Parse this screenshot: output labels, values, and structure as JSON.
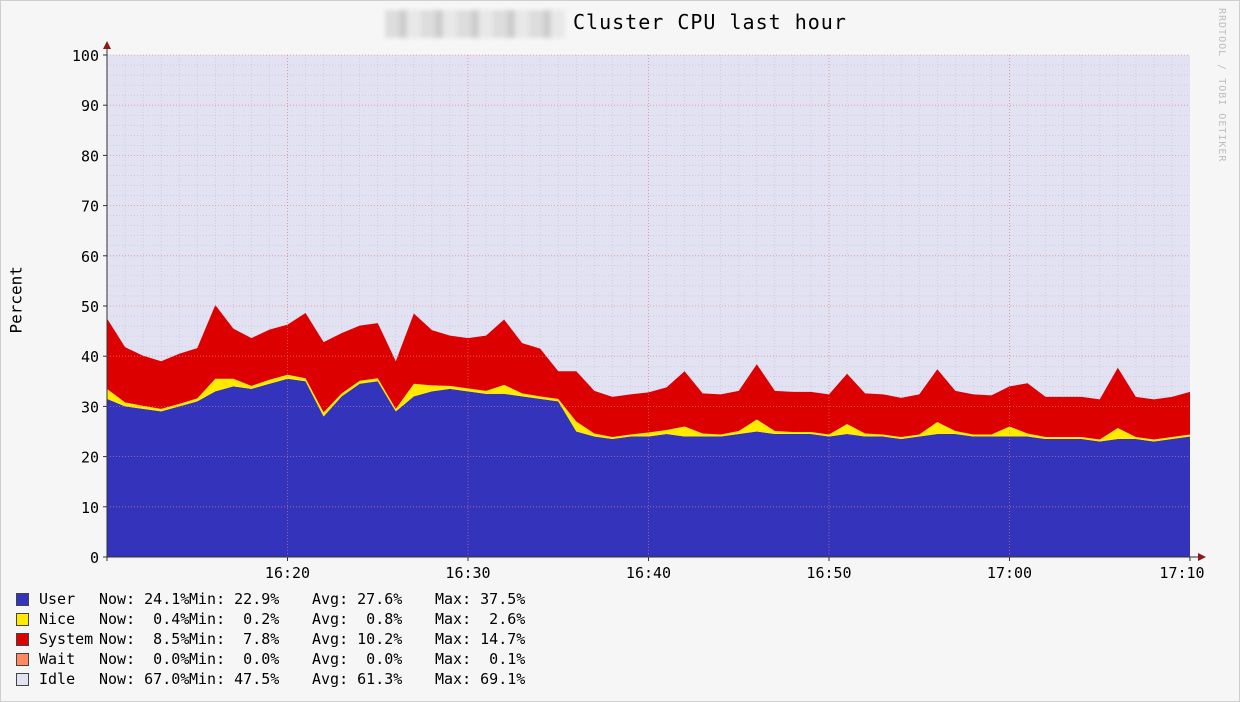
{
  "header": {
    "title": "Cluster CPU last hour",
    "watermark": "RRDTOOL / TOBI OETIKER"
  },
  "chart_data": {
    "type": "area",
    "stacked": true,
    "title": "Cluster CPU last hour",
    "ylabel": "Percent",
    "xlabel": "",
    "ylim": [
      0,
      100
    ],
    "yticks": [
      0,
      10,
      20,
      30,
      40,
      50,
      60,
      70,
      80,
      90,
      100
    ],
    "xlim": [
      "16:10",
      "17:10"
    ],
    "xticks": [
      "16:20",
      "16:30",
      "16:40",
      "16:50",
      "17:00",
      "17:10"
    ],
    "grid": true,
    "legend_position": "bottom-left",
    "colors": {
      "User": "#3333bb",
      "Nice": "#ffea00",
      "System": "#dd0000",
      "Wait": "#ff8a60",
      "Idle": "#e2e2f2"
    },
    "x": [
      "16:10",
      "16:11",
      "16:12",
      "16:13",
      "16:14",
      "16:15",
      "16:16",
      "16:17",
      "16:18",
      "16:19",
      "16:20",
      "16:21",
      "16:22",
      "16:23",
      "16:24",
      "16:25",
      "16:26",
      "16:27",
      "16:28",
      "16:29",
      "16:30",
      "16:31",
      "16:32",
      "16:33",
      "16:34",
      "16:35",
      "16:36",
      "16:37",
      "16:38",
      "16:39",
      "16:40",
      "16:41",
      "16:42",
      "16:43",
      "16:44",
      "16:45",
      "16:46",
      "16:47",
      "16:48",
      "16:49",
      "16:50",
      "16:51",
      "16:52",
      "16:53",
      "16:54",
      "16:55",
      "16:56",
      "16:57",
      "16:58",
      "16:59",
      "17:00",
      "17:01",
      "17:02",
      "17:03",
      "17:04",
      "17:05",
      "17:06",
      "17:07",
      "17:08",
      "17:09",
      "17:10"
    ],
    "series": [
      {
        "name": "User",
        "values": [
          31.5,
          30.0,
          29.5,
          29.0,
          30.0,
          31.0,
          33.0,
          34.0,
          33.5,
          34.5,
          35.5,
          35.0,
          28.0,
          32.0,
          34.5,
          35.0,
          29.0,
          32.0,
          33.0,
          33.5,
          33.0,
          32.5,
          32.5,
          32.0,
          31.5,
          31.0,
          25.0,
          24.0,
          23.5,
          24.0,
          24.0,
          24.5,
          24.0,
          24.0,
          24.0,
          24.5,
          25.0,
          24.5,
          24.5,
          24.5,
          24.0,
          24.5,
          24.0,
          24.0,
          23.5,
          24.0,
          24.5,
          24.5,
          24.0,
          24.0,
          24.0,
          24.0,
          23.5,
          23.5,
          23.5,
          23.0,
          23.5,
          23.5,
          23.0,
          23.5,
          24.0
        ]
      },
      {
        "name": "Nice",
        "values": [
          2.0,
          0.8,
          0.6,
          0.5,
          0.5,
          0.6,
          2.5,
          1.5,
          0.6,
          0.8,
          0.8,
          0.6,
          0.8,
          0.6,
          0.6,
          0.6,
          0.5,
          2.5,
          1.2,
          0.6,
          0.6,
          0.6,
          1.8,
          0.6,
          0.5,
          0.5,
          2.0,
          0.6,
          0.4,
          0.4,
          0.8,
          0.8,
          2.0,
          0.6,
          0.4,
          0.6,
          2.4,
          0.6,
          0.4,
          0.4,
          0.4,
          2.0,
          0.6,
          0.4,
          0.4,
          0.4,
          2.4,
          0.6,
          0.4,
          0.4,
          2.0,
          0.6,
          0.4,
          0.4,
          0.4,
          0.4,
          2.2,
          0.4,
          0.4,
          0.4,
          0.4
        ]
      },
      {
        "name": "System",
        "values": [
          14.0,
          11.0,
          10.0,
          9.5,
          10.0,
          10.0,
          14.7,
          10.0,
          9.5,
          10.0,
          10.0,
          13.0,
          14.0,
          12.0,
          11.0,
          11.0,
          9.5,
          14.0,
          11.0,
          10.0,
          10.0,
          11.0,
          13.0,
          10.0,
          9.5,
          5.5,
          10.0,
          8.5,
          8.0,
          8.0,
          8.0,
          8.5,
          11.0,
          8.0,
          8.0,
          8.0,
          11.0,
          8.0,
          8.0,
          8.0,
          8.0,
          10.0,
          8.0,
          8.0,
          7.8,
          8.0,
          10.5,
          8.0,
          8.0,
          7.8,
          8.0,
          10.0,
          8.0,
          8.0,
          8.0,
          8.0,
          12.0,
          8.0,
          8.0,
          8.0,
          8.5
        ]
      },
      {
        "name": "Wait",
        "values": [
          0,
          0,
          0,
          0,
          0,
          0,
          0,
          0,
          0,
          0,
          0,
          0,
          0,
          0,
          0,
          0,
          0,
          0,
          0,
          0,
          0,
          0,
          0,
          0,
          0,
          0,
          0,
          0,
          0,
          0,
          0,
          0,
          0,
          0,
          0,
          0,
          0,
          0,
          0,
          0,
          0,
          0,
          0,
          0,
          0,
          0,
          0,
          0,
          0,
          0,
          0,
          0,
          0,
          0,
          0,
          0,
          0,
          0,
          0,
          0,
          0
        ]
      }
    ],
    "legend": [
      {
        "name": "User",
        "now": "24.1%",
        "min": "22.9%",
        "avg": "27.6%",
        "max": "37.5%"
      },
      {
        "name": "Nice",
        "now": " 0.4%",
        "min": " 0.2%",
        "avg": " 0.8%",
        "max": " 2.6%"
      },
      {
        "name": "System",
        "now": " 8.5%",
        "min": " 7.8%",
        "avg": "10.2%",
        "max": "14.7%"
      },
      {
        "name": "Wait",
        "now": " 0.0%",
        "min": " 0.0%",
        "avg": " 0.0%",
        "max": " 0.1%"
      },
      {
        "name": "Idle",
        "now": "67.0%",
        "min": "47.5%",
        "avg": "61.3%",
        "max": "69.1%"
      }
    ],
    "stat_labels": {
      "now": "Now:",
      "min": "Min:",
      "avg": "Avg:",
      "max": "Max:"
    }
  }
}
